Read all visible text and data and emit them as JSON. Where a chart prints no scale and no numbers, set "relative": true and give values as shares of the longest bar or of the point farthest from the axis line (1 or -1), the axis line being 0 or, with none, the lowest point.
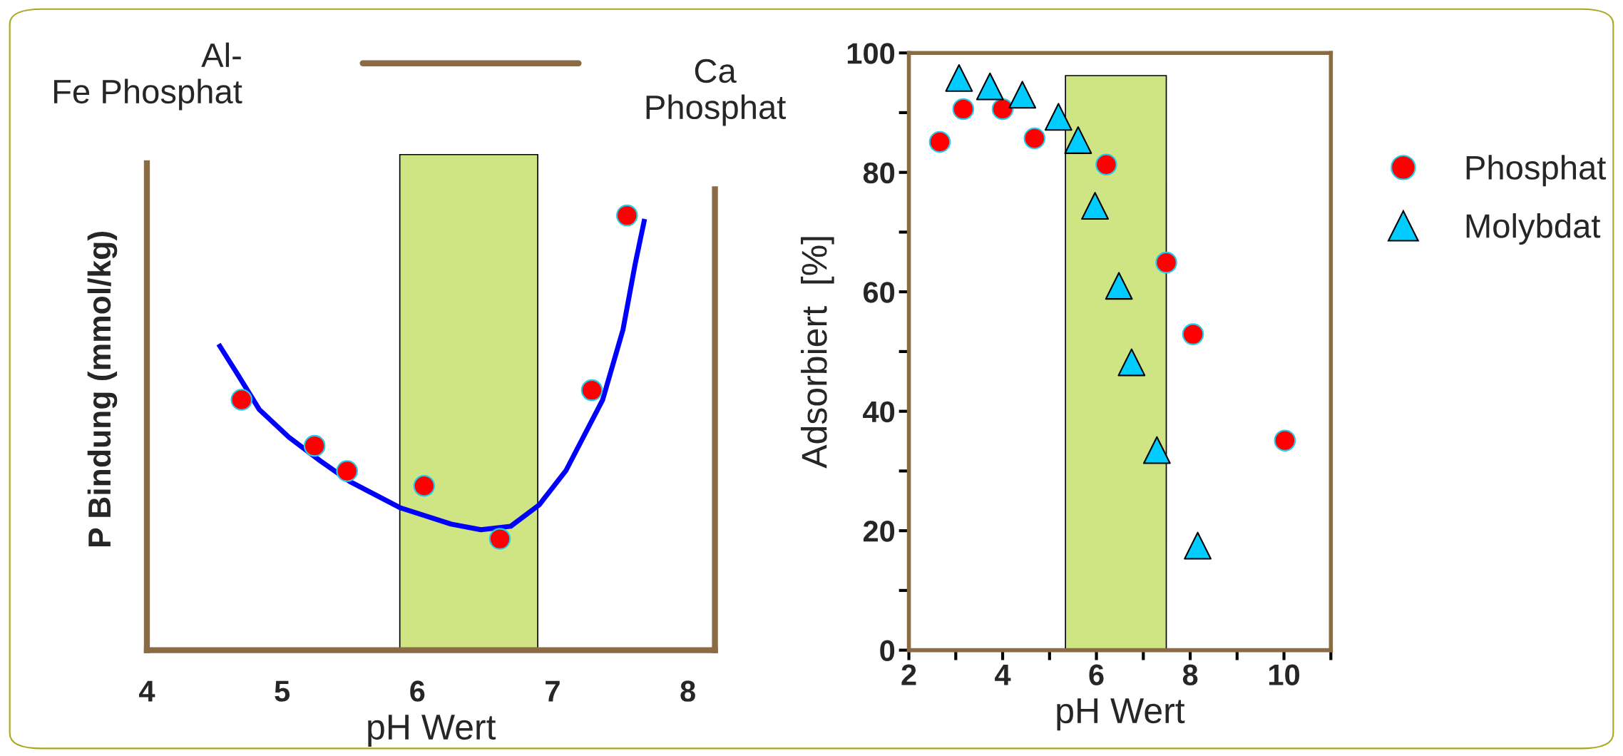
{
  "chart_data": [
    {
      "type": "scatter",
      "relative": true,
      "xlabel": "pH Wert",
      "ylabel": "P Bindung (mmol/kg)",
      "annotations": [
        "Al-\nFe Phosphat",
        "Ca\nPhosphat"
      ],
      "xlim": [
        4,
        8.2
      ],
      "xticks": [
        4,
        5,
        6,
        7,
        8
      ],
      "grid": false,
      "tick_labels": "x",
      "bands": [
        {
          "axis": "x",
          "from": 5.87,
          "to": 6.89,
          "color": "#cfe584"
        }
      ],
      "series": [
        {
          "marker": "circle",
          "color": "#ff0000",
          "x": [
            4.7,
            5.24,
            5.48,
            6.05,
            6.61,
            7.29,
            7.55
          ],
          "values": [
            0.576,
            0.47,
            0.412,
            0.378,
            0.256,
            0.598,
            1.0
          ]
        },
        {
          "type": "line",
          "color": "#0000ff",
          "line_style": "solid",
          "x": [
            4.53,
            4.68,
            4.83,
            5.05,
            5.28,
            5.5,
            5.87,
            6.25,
            6.47,
            6.69,
            6.9,
            7.1,
            7.37,
            7.52,
            7.61,
            7.68
          ],
          "values": [
            0.704,
            0.63,
            0.554,
            0.49,
            0.436,
            0.388,
            0.328,
            0.29,
            0.277,
            0.285,
            0.334,
            0.414,
            0.576,
            0.737,
            0.888,
            0.992
          ]
        }
      ]
    },
    {
      "type": "scatter",
      "xlabel": "pH Wert",
      "ylabel": "Adsorbiert  [%]",
      "xlim": [
        2,
        11
      ],
      "xticks": [
        2,
        {
          "value": 3,
          "label": null
        },
        4,
        {
          "value": 5,
          "label": null
        },
        6,
        {
          "value": 7,
          "label": null
        },
        8,
        {
          "value": 9,
          "label": null
        },
        10,
        {
          "value": 11,
          "label": null
        }
      ],
      "ylim": [
        0,
        100
      ],
      "yticks": [
        0,
        {
          "value": 10,
          "label": null
        },
        20,
        {
          "value": 30,
          "label": null
        },
        40,
        {
          "value": 50,
          "label": null
        },
        60,
        {
          "value": 70,
          "label": null
        },
        80,
        {
          "value": 90,
          "label": null
        },
        100
      ],
      "grid": false,
      "legend": "top right",
      "bands": [
        {
          "axis": "x",
          "from": 5.34,
          "to": 7.49,
          "color": "#cfe584"
        }
      ],
      "series": [
        {
          "name": "Phosphat",
          "marker": "circle",
          "color": "#ff0000",
          "x": [
            2.66,
            3.16,
            4.0,
            4.68,
            6.21,
            7.49,
            8.06,
            10.02
          ],
          "values": [
            85.1,
            90.6,
            90.6,
            85.7,
            81.3,
            64.9,
            52.9,
            35.1
          ]
        },
        {
          "name": "Molybdat",
          "marker": "triangle",
          "color": "#00ccff",
          "x": [
            3.07,
            3.73,
            4.42,
            5.19,
            5.61,
            5.97,
            6.48,
            6.75,
            7.29,
            8.16
          ],
          "values": [
            95.8,
            94.4,
            93.0,
            89.3,
            85.4,
            74.4,
            61.0,
            48.2,
            33.5,
            17.5
          ]
        }
      ]
    }
  ]
}
